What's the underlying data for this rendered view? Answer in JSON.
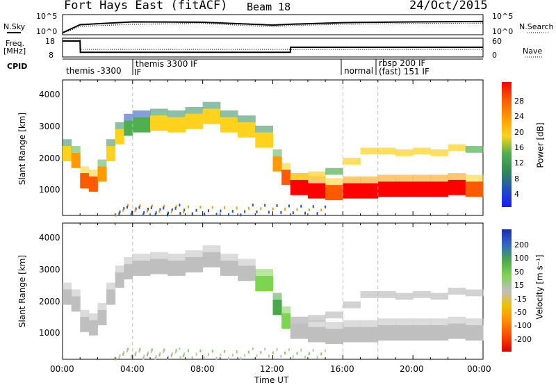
{
  "header": {
    "station": "Fort Hays East (fitACF)",
    "beam": "Beam 18",
    "date": "24/Oct/2015"
  },
  "left_labels": {
    "nsky": "N.Sky",
    "freq": "Freq.",
    "freq_unit": "[MHz]",
    "cpid": "CPID"
  },
  "right_labels": {
    "nsearch": "N.Search",
    "nave": "Nave"
  },
  "strip_ticks": {
    "nsky_left": [
      "10^5",
      "10^0"
    ],
    "nsky_right": [
      "10^5",
      "10^0"
    ],
    "freq_left": [
      "18",
      "8"
    ],
    "nave_right": [
      "60",
      "0"
    ]
  },
  "cpid_labels": [
    "themis -3300",
    "themis 3300 IF",
    "IF",
    "normal",
    "rbsp 200 IF",
    "(fast) 151 IF"
  ],
  "panels": {
    "power": {
      "ylabel": "Slant Range [km]",
      "yticks": [
        "4000",
        "3000",
        "2000",
        "1000"
      ],
      "cbar_label": "Power [dB]",
      "cbar_ticks": [
        "28",
        "24",
        "20",
        "16",
        "12",
        "8",
        "4"
      ]
    },
    "velocity": {
      "ylabel": "Slant Range [km]",
      "yticks": [
        "4000",
        "3000",
        "2000",
        "1000"
      ],
      "cbar_label": "Velocity [m s⁻¹]",
      "cbar_ticks": [
        "200",
        "100",
        "50",
        "15",
        "-15",
        "-50",
        "-100",
        "-200"
      ]
    }
  },
  "xaxis": {
    "ticks": [
      "00:00",
      "04:00",
      "08:00",
      "12:00",
      "16:00",
      "20:00",
      "00:00"
    ],
    "label": "Time UT"
  },
  "colors": {
    "power": [
      "#1a1aff",
      "#2050c0",
      "#2e8b57",
      "#4fb04f",
      "#ffd21e",
      "#ff9a00",
      "#ff5a00",
      "#ff0000"
    ],
    "velocity": [
      "#1a2ea8",
      "#2f68c8",
      "#4aa84a",
      "#7cd44f",
      "#bfbfbf",
      "#f0c000",
      "#ff8c00",
      "#ff4500",
      "#e00000"
    ]
  },
  "chart_data": [
    {
      "type": "line",
      "x": [
        "00:00",
        "01:00",
        "04:00",
        "08:00",
        "12:00",
        "13:00",
        "16:00",
        "20:00",
        "24:00"
      ],
      "series": [
        {
          "name": "N.Sky",
          "values": [
            0.5,
            2.5,
            3.2,
            3.1,
            2.4,
            2.6,
            3.0,
            3.2,
            3.3
          ]
        },
        {
          "name": "N.Search",
          "values": [
            0.3,
            2.1,
            2.6,
            2.8,
            2.0,
            2.3,
            2.6,
            2.8,
            2.9
          ]
        }
      ],
      "ylim": [
        0,
        5
      ],
      "ylabel": "N.Sky"
    },
    {
      "type": "line",
      "x": [
        "00:00",
        "01:00",
        "01:01",
        "13:00",
        "13:01",
        "24:00"
      ],
      "series": [
        {
          "name": "Freq.",
          "values": [
            16.5,
            16.5,
            10.5,
            10.5,
            13.2,
            13.2
          ]
        },
        {
          "name": "Nave",
          "values": [
            18,
            18,
            12,
            12,
            12,
            12
          ]
        }
      ],
      "ylim": [
        8,
        18
      ],
      "ylabel": "Freq. [MHz]"
    },
    {
      "type": "heatmap",
      "x_hours": [
        0,
        0.5,
        1,
        1.5,
        2,
        2.5,
        3,
        3.5,
        4,
        5,
        6,
        7,
        8,
        9,
        10,
        11,
        12,
        12.5,
        13,
        14,
        15,
        16,
        17,
        18,
        19,
        20,
        21,
        22,
        23,
        24
      ],
      "band_center_km": [
        2300,
        2100,
        1500,
        1400,
        1700,
        2300,
        2800,
        3050,
        3150,
        3200,
        3150,
        3250,
        3400,
        3150,
        3000,
        2700,
        2000,
        1600,
        1300,
        1200,
        1150,
        1200,
        1200,
        1250,
        1250,
        1250,
        1250,
        1300,
        1250,
        1500
      ],
      "band_secondary_km": [
        null,
        null,
        null,
        null,
        null,
        null,
        null,
        null,
        null,
        null,
        null,
        null,
        null,
        null,
        null,
        null,
        null,
        null,
        1650,
        1700,
        1800,
        2100,
        2400,
        2400,
        2350,
        2400,
        2350,
        2500,
        2450,
        2300
      ],
      "power_db": [
        16,
        20,
        24,
        26,
        22,
        18,
        16,
        14,
        14,
        16,
        18,
        16,
        16,
        18,
        16,
        18,
        20,
        24,
        28,
        28,
        26,
        28,
        28,
        28,
        28,
        28,
        28,
        28,
        26,
        24
      ],
      "velocity_ms": [
        0,
        0,
        0,
        0,
        0,
        0,
        0,
        0,
        0,
        0,
        0,
        0,
        0,
        0,
        10,
        30,
        60,
        40,
        0,
        0,
        0,
        0,
        0,
        0,
        0,
        0,
        0,
        0,
        0,
        0
      ],
      "xlim": [
        0,
        24
      ],
      "ylim": [
        500,
        4500
      ],
      "xlabel": "Time UT",
      "ylabel": "Slant Range [km]"
    }
  ]
}
